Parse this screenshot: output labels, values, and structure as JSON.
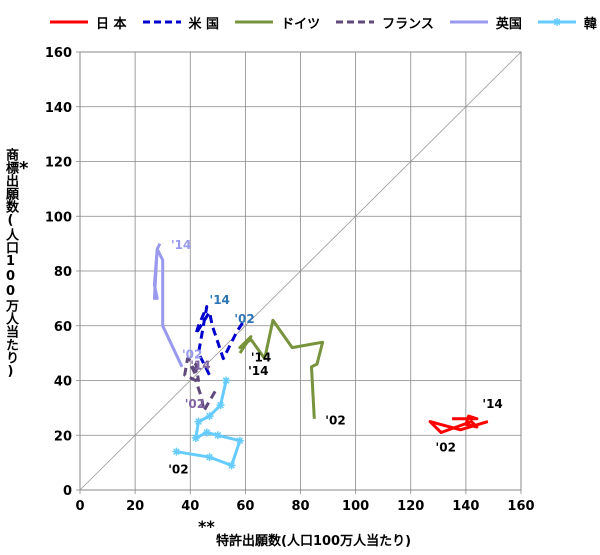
{
  "chart_data": {
    "type": "line",
    "xlabel": "特許出願数(人口100万人当たり)",
    "ylabel": "商標出願数(人口100万人当たり)",
    "xlabel_mark": "**",
    "ylabel_mark": "*",
    "xlim": [
      0,
      160
    ],
    "ylim": [
      0,
      160
    ],
    "x_ticks": [
      "0",
      "20",
      "40",
      "60",
      "80",
      "100",
      "120",
      "140",
      "160"
    ],
    "y_ticks": [
      "0",
      "20",
      "40",
      "60",
      "80",
      "100",
      "120",
      "140",
      "160"
    ],
    "grid": true,
    "diagonal_reference": true,
    "legend_position": "top",
    "series": [
      {
        "name": "日 本",
        "color": "#ff0000",
        "style": "solid",
        "marker": "none",
        "points": [
          [
            148,
            25
          ],
          [
            138,
            22
          ],
          [
            127,
            25
          ],
          [
            131,
            21
          ],
          [
            142,
            25
          ],
          [
            144,
            23
          ],
          [
            140,
            24
          ],
          [
            141,
            27
          ],
          [
            144,
            26
          ],
          [
            135,
            26
          ]
        ]
      },
      {
        "name": "米 国",
        "color": "#0000cc",
        "style": "dashed",
        "marker": "none",
        "points": [
          [
            59,
            61
          ],
          [
            57,
            58
          ],
          [
            52,
            48
          ],
          [
            48,
            60
          ],
          [
            47,
            65
          ],
          [
            42,
            57
          ],
          [
            43,
            60
          ],
          [
            46,
            67
          ],
          [
            43,
            50
          ],
          [
            47,
            42
          ]
        ]
      },
      {
        "name": "ドイツ",
        "color": "#77933c",
        "style": "solid",
        "marker": "none",
        "points": [
          [
            85,
            26
          ],
          [
            84,
            45
          ],
          [
            86,
            46
          ],
          [
            88,
            54
          ],
          [
            77,
            52
          ],
          [
            70,
            62
          ],
          [
            67,
            48
          ],
          [
            62,
            55
          ],
          [
            58,
            52
          ],
          [
            62,
            56
          ],
          [
            58,
            50
          ]
        ]
      },
      {
        "name": "フランス",
        "color": "#604a7b",
        "style": "dashed",
        "marker": "none",
        "points": [
          [
            49,
            36
          ],
          [
            45,
            29
          ],
          [
            44,
            34
          ],
          [
            42,
            40
          ],
          [
            38,
            42
          ],
          [
            39,
            48
          ],
          [
            42,
            46
          ],
          [
            43,
            40
          ],
          [
            40,
            46
          ],
          [
            43,
            42
          ]
        ]
      },
      {
        "name": "英国",
        "color": "#9999ee",
        "style": "solid",
        "marker": "none",
        "points": [
          [
            37,
            45
          ],
          [
            30,
            60
          ],
          [
            30,
            70
          ],
          [
            30,
            84
          ],
          [
            28,
            88
          ],
          [
            27,
            75
          ],
          [
            28,
            70
          ],
          [
            27,
            70
          ],
          [
            28,
            88
          ],
          [
            29,
            90
          ]
        ]
      },
      {
        "name": "韓 国",
        "color": "#66ccff",
        "style": "solid",
        "marker": "star",
        "points": [
          [
            35,
            14
          ],
          [
            47,
            12
          ],
          [
            55,
            9
          ],
          [
            58,
            18
          ],
          [
            50,
            20
          ],
          [
            46,
            21
          ],
          [
            42,
            19
          ],
          [
            43,
            25
          ],
          [
            47,
            27
          ],
          [
            51,
            31
          ],
          [
            53,
            40
          ]
        ]
      }
    ],
    "annotations": [
      {
        "text": "'14",
        "x": 146,
        "y": 30,
        "color": "#000000"
      },
      {
        "text": "'02",
        "x": 129,
        "y": 14,
        "color": "#000000"
      },
      {
        "text": "'14",
        "x": 47,
        "y": 68,
        "color": "#2e75b6"
      },
      {
        "text": "'02",
        "x": 56,
        "y": 61,
        "color": "#2e75b6"
      },
      {
        "text": "'14",
        "x": 62,
        "y": 47,
        "color": "#000000"
      },
      {
        "text": "'02",
        "x": 89,
        "y": 24,
        "color": "#000000"
      },
      {
        "text": "'14",
        "x": 40,
        "y": 44,
        "color": "#8064a2"
      },
      {
        "text": "'02",
        "x": 38,
        "y": 30,
        "color": "#8064a2"
      },
      {
        "text": "'14",
        "x": 33,
        "y": 88,
        "color": "#9999ee"
      },
      {
        "text": "'02",
        "x": 37,
        "y": 48,
        "color": "#9999ee"
      },
      {
        "text": "'14",
        "x": 61,
        "y": 42,
        "color": "#000000"
      },
      {
        "text": "'02",
        "x": 32,
        "y": 6,
        "color": "#000000"
      }
    ]
  }
}
